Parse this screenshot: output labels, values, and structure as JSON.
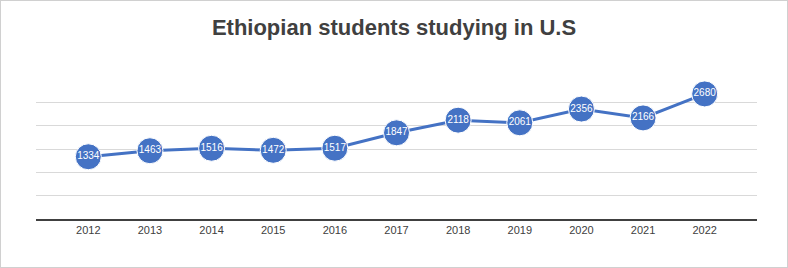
{
  "chart_data": {
    "type": "line",
    "title": "Ethiopian students studying in U.S",
    "categories": [
      "2012",
      "2013",
      "2014",
      "2015",
      "2016",
      "2017",
      "2018",
      "2019",
      "2020",
      "2021",
      "2022"
    ],
    "values": [
      1334,
      1463,
      1516,
      1472,
      1517,
      1847,
      2118,
      2061,
      2356,
      2166,
      2680
    ],
    "color": "#4472c4",
    "marker": "circle",
    "ylim": [
      0,
      3000
    ],
    "yticks": [
      0,
      500,
      1000,
      1500,
      2000,
      2500,
      3000
    ],
    "grid": true,
    "data_labels": true,
    "tick_labels": "x"
  }
}
